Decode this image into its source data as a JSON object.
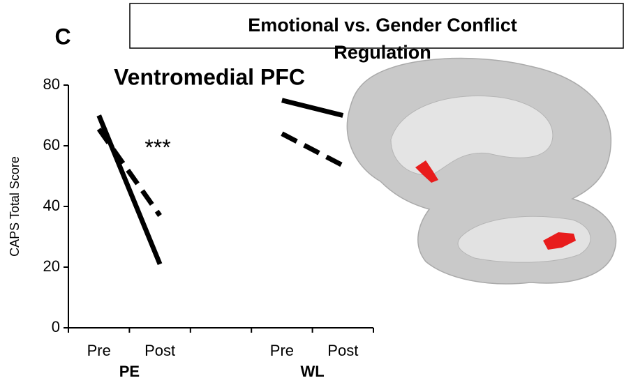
{
  "chart_data": {
    "type": "line",
    "panel_label": "C",
    "title": "Emotional vs. Gender Conflict Regulation",
    "subtitle": "Ventromedial PFC",
    "y_label": "CAPS Total Score",
    "annotation": "***",
    "categories": [
      "Pre",
      "Post",
      "Pre",
      "Post"
    ],
    "groups": [
      "PE",
      "WL"
    ],
    "series": [
      {
        "style": "solid",
        "color": "#000000",
        "values": [
          70,
          21,
          75,
          70
        ]
      },
      {
        "style": "dashed",
        "color": "#000000",
        "values": [
          65.5,
          37,
          64,
          53.5
        ]
      }
    ],
    "ylim": [
      0,
      80
    ],
    "yticks": [
      0,
      20,
      40,
      60,
      80
    ]
  }
}
